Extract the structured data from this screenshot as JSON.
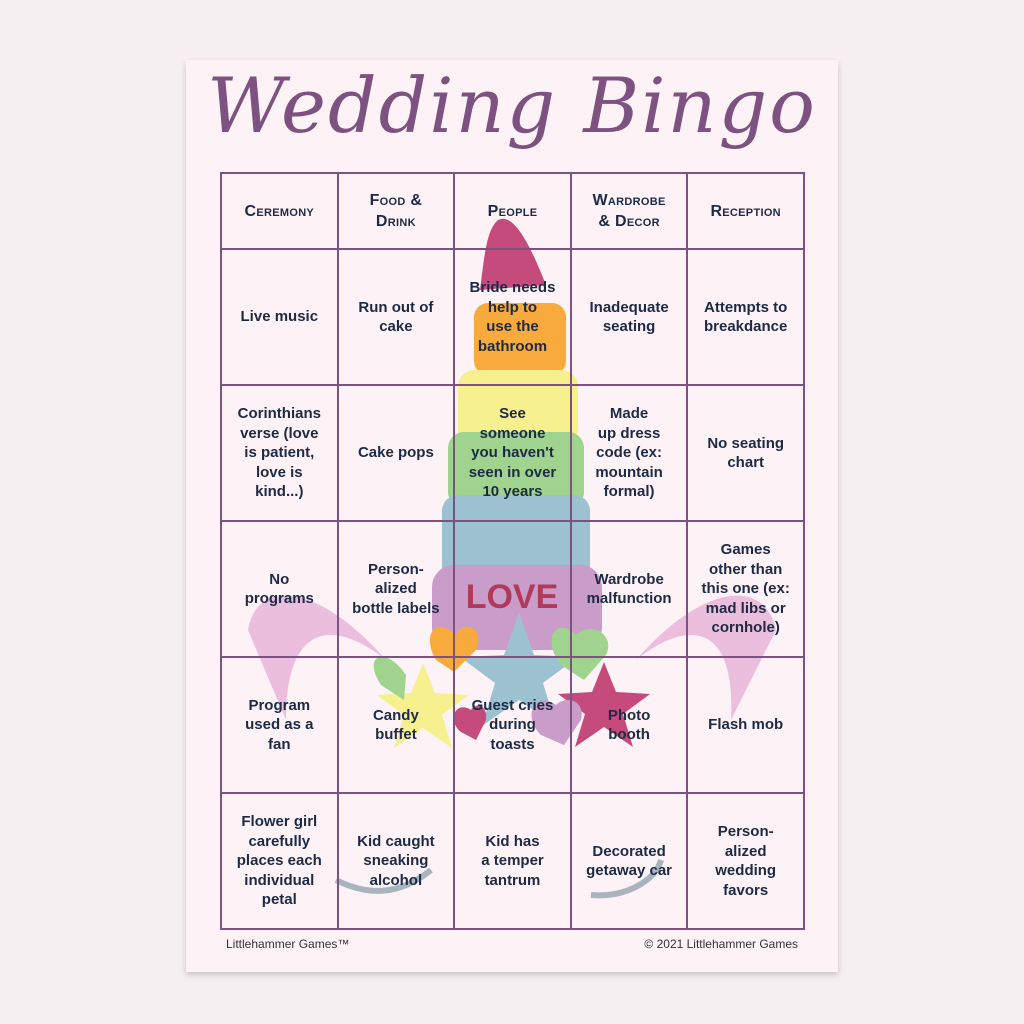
{
  "title": "Wedding Bingo",
  "columns": [
    "Ceremony",
    "Food &\nDrink",
    "People",
    "Wardrobe\n& Decor",
    "Reception"
  ],
  "rows": [
    [
      "Live music",
      "Run out of\ncake",
      "Bride needs\nhelp to\nuse the\nbathroom",
      "Inadequate\nseating",
      "Attempts to\nbreakdance"
    ],
    [
      "Corinthians\nverse (love\nis patient,\nlove is\nkind...)",
      "Cake pops",
      "See\nsomeone\nyou haven't\nseen in over\n10 years",
      "Made\nup dress\ncode (ex:\nmountain\nformal)",
      "No seating\nchart"
    ],
    [
      "No\nprograms",
      "Person-\nalized\nbottle labels",
      "",
      "Wardrobe\nmalfunction",
      "Games\nother than\nthis one (ex:\nmad libs or\ncornhole)"
    ],
    [
      "Program\nused as a\nfan",
      "Candy\nbuffet",
      "Guest cries\nduring\ntoasts",
      "Photo\nbooth",
      "Flash mob"
    ],
    [
      "Flower girl\ncarefully\nplaces each\nindividual\npetal",
      "Kid caught\nsneaking\nalcohol",
      "Kid has\na temper\ntantrum",
      "Decorated\ngetaway car",
      "Person-\nalized\nwedding\nfavors"
    ]
  ],
  "center_text": "LOVE",
  "footer": {
    "left": "Littlehammer Games™",
    "right": "© 2021 Littlehammer Games"
  },
  "colors": {
    "frame": "#7d5280",
    "text": "#1c2a44",
    "paper": "#fdf3f7",
    "love": "#b03a5a"
  }
}
